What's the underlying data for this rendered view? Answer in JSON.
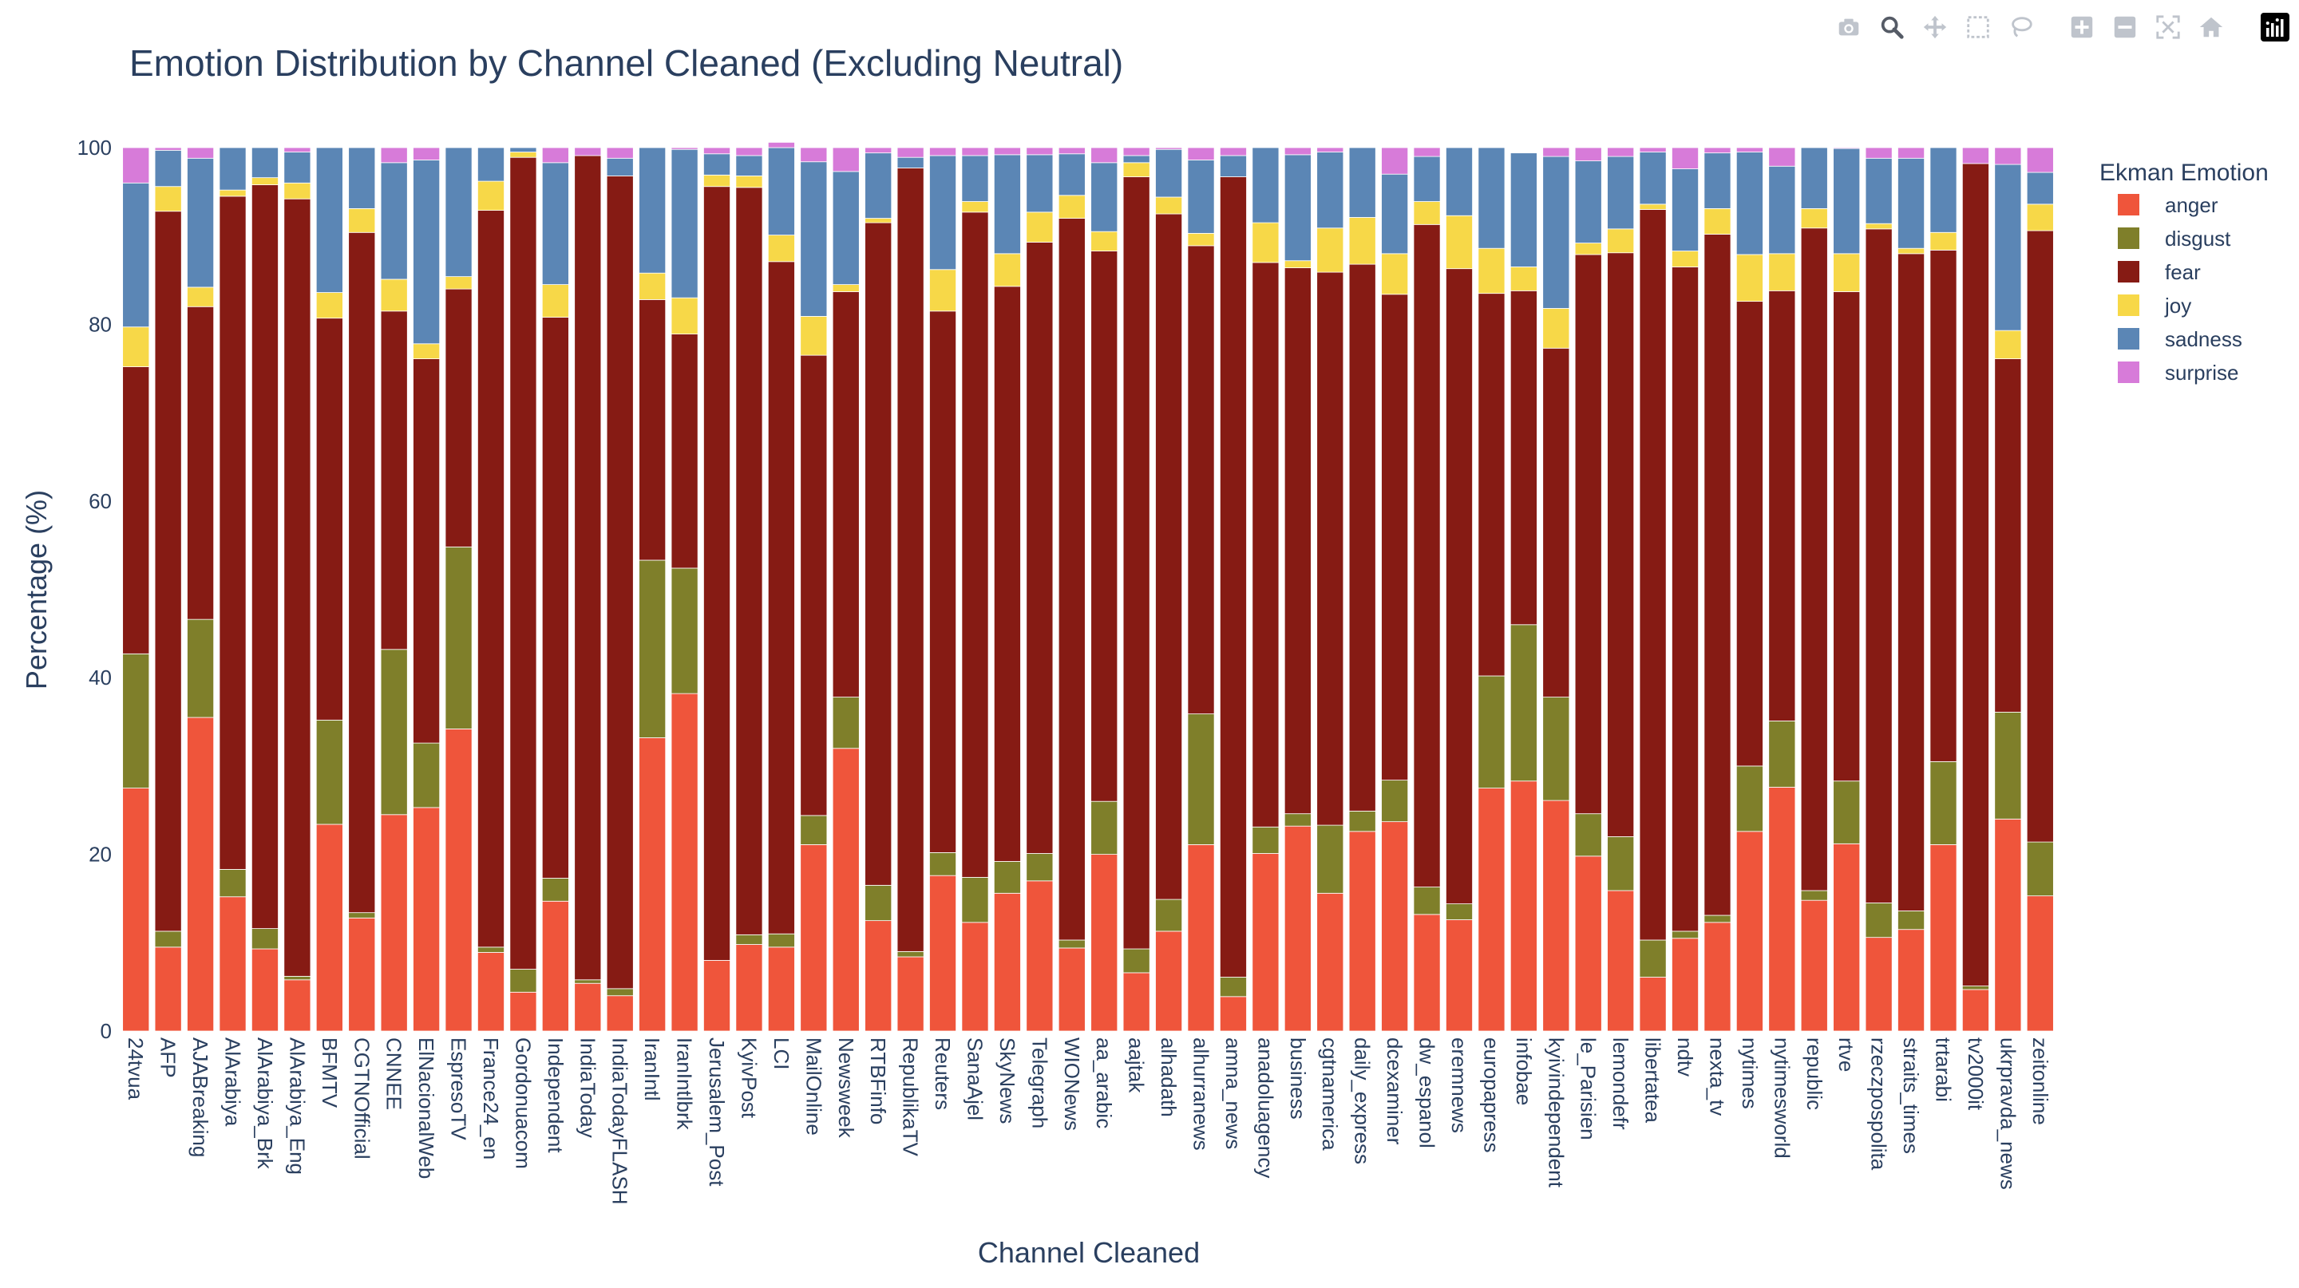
{
  "modebar": {
    "buttons": [
      {
        "name": "camera-icon",
        "title": "Download plot as a png"
      },
      {
        "name": "zoom-icon",
        "title": "Zoom"
      },
      {
        "name": "pan-icon",
        "title": "Pan"
      },
      {
        "name": "box-select-icon",
        "title": "Box Select"
      },
      {
        "name": "lasso-select-icon",
        "title": "Lasso Select"
      },
      {
        "name": "zoom-in-icon",
        "title": "Zoom in"
      },
      {
        "name": "zoom-out-icon",
        "title": "Zoom out"
      },
      {
        "name": "autoscale-icon",
        "title": "Autoscale"
      },
      {
        "name": "reset-axes-icon",
        "title": "Reset axes"
      },
      {
        "name": "plotly-logo-icon",
        "title": "Produced with Plotly"
      }
    ]
  },
  "chart_data": {
    "type": "bar",
    "barmode": "stack",
    "title": "Emotion Distribution by Channel Cleaned (Excluding Neutral)",
    "xlabel": "Channel Cleaned",
    "ylabel": "Percentage (%)",
    "ylim": [
      0,
      100
    ],
    "yticks": [
      0,
      20,
      40,
      60,
      80,
      100
    ],
    "grid": false,
    "legend": {
      "title": "Ekman Emotion",
      "placement": "top-right outside"
    },
    "categories": [
      "24tvua",
      "AFP",
      "AJABreaking",
      "AlArabiya",
      "AlArabiya_Brk",
      "AlArabiya_Eng",
      "BFMTV",
      "CGTNOfficial",
      "CNNEE",
      "ElNacionalWeb",
      "EspresoTV",
      "France24_en",
      "Gordonuacom",
      "Independent",
      "IndiaToday",
      "IndiaTodayFLASH",
      "IranIntl",
      "IranIntlbrk",
      "Jerusalem_Post",
      "KyivPost",
      "LCI",
      "MailOnline",
      "Newsweek",
      "RTBFinfo",
      "RepublikaTV",
      "Reuters",
      "SanaAjel",
      "SkyNews",
      "Telegraph",
      "WIONews",
      "aa_arabic",
      "aajtak",
      "alhadath",
      "alhurranews",
      "amna_news",
      "anadoluagency",
      "business",
      "cgtnamerica",
      "daily_express",
      "dcexaminer",
      "dw_espanol",
      "eremnews",
      "europapress",
      "infobae",
      "kyivindependent",
      "le_Parisien",
      "lemondefr",
      "libertatea",
      "ndtv",
      "nexta_tv",
      "nytimes",
      "nytimesworld",
      "republic",
      "rtve",
      "rzeczpospolita",
      "straits_times",
      "trtarabi",
      "tv2000it",
      "ukrpravda_news",
      "zeitonline"
    ],
    "series": [
      {
        "name": "anger",
        "color": "#EF553B",
        "values": [
          27.5,
          9.5,
          35.5,
          15.2,
          9.3,
          5.8,
          23.4,
          12.8,
          24.5,
          25.3,
          34.2,
          8.9,
          4.4,
          14.7,
          5.4,
          4.0,
          33.2,
          38.2,
          8.0,
          9.8,
          9.5,
          21.1,
          32.0,
          12.5,
          8.4,
          17.6,
          12.3,
          15.6,
          17.0,
          9.4,
          20.0,
          6.6,
          11.3,
          21.1,
          3.9,
          20.1,
          23.2,
          15.6,
          22.6,
          23.7,
          13.2,
          12.6,
          27.5,
          28.3,
          26.1,
          19.8,
          15.9,
          6.1,
          10.5,
          12.3,
          22.6,
          27.6,
          14.8,
          21.2,
          10.6,
          11.5,
          21.1,
          4.7,
          24.0,
          15.3
        ]
      },
      {
        "name": "disgust",
        "color": "#7F7F2A",
        "values": [
          15.2,
          1.8,
          11.1,
          3.1,
          2.3,
          0.4,
          11.8,
          0.6,
          18.7,
          7.3,
          20.6,
          0.6,
          2.6,
          2.6,
          0.4,
          0.8,
          20.1,
          14.2,
          0.0,
          1.1,
          1.5,
          3.3,
          5.8,
          4.0,
          0.6,
          2.6,
          5.1,
          3.6,
          3.1,
          0.9,
          6.0,
          2.7,
          3.6,
          14.8,
          2.2,
          3.0,
          1.4,
          7.7,
          2.3,
          4.7,
          3.1,
          1.8,
          12.7,
          17.7,
          11.7,
          4.8,
          6.1,
          4.2,
          0.8,
          0.8,
          7.4,
          7.5,
          1.1,
          7.1,
          3.9,
          2.1,
          9.4,
          0.4,
          12.1,
          6.1
        ]
      },
      {
        "name": "fear",
        "color": "#861B14",
        "values": [
          32.5,
          81.5,
          35.4,
          76.2,
          84.2,
          88.0,
          45.5,
          77.0,
          38.3,
          43.5,
          29.2,
          83.4,
          91.9,
          63.5,
          93.3,
          92.0,
          29.5,
          26.5,
          87.6,
          84.6,
          76.1,
          52.1,
          45.9,
          75.0,
          88.7,
          61.3,
          75.3,
          65.1,
          69.2,
          81.7,
          62.3,
          87.4,
          77.6,
          53.0,
          90.6,
          63.9,
          61.8,
          62.6,
          61.9,
          55.0,
          75.0,
          71.9,
          43.3,
          37.8,
          39.5,
          63.3,
          66.1,
          82.7,
          75.2,
          77.1,
          52.6,
          48.7,
          75.0,
          55.4,
          76.3,
          74.4,
          57.9,
          93.1,
          40.0,
          69.2
        ]
      },
      {
        "name": "joy",
        "color": "#F7D848",
        "values": [
          4.5,
          2.8,
          2.2,
          0.7,
          0.8,
          1.8,
          2.9,
          2.7,
          3.6,
          1.7,
          1.4,
          3.3,
          0.6,
          3.7,
          0.0,
          0.0,
          3.0,
          4.1,
          1.3,
          1.3,
          3.0,
          4.4,
          0.8,
          0.5,
          0.0,
          4.7,
          1.2,
          3.7,
          3.4,
          2.6,
          2.2,
          1.6,
          1.9,
          1.4,
          0.0,
          4.5,
          0.8,
          5.0,
          5.3,
          4.6,
          2.6,
          6.0,
          5.1,
          2.7,
          4.5,
          1.3,
          2.7,
          0.6,
          1.8,
          2.9,
          5.3,
          4.2,
          2.2,
          4.3,
          0.6,
          0.6,
          2.0,
          0.0,
          3.2,
          3.0
        ]
      },
      {
        "name": "sadness",
        "color": "#5B86B5",
        "values": [
          16.3,
          4.1,
          14.6,
          4.8,
          3.4,
          3.5,
          16.4,
          6.9,
          13.2,
          20.8,
          14.6,
          3.8,
          0.5,
          13.8,
          0.0,
          2.0,
          14.2,
          16.8,
          2.4,
          2.3,
          9.9,
          17.5,
          12.8,
          7.4,
          1.2,
          12.9,
          5.2,
          11.2,
          6.5,
          4.7,
          7.8,
          0.8,
          5.4,
          8.3,
          2.4,
          8.5,
          12.0,
          8.6,
          7.9,
          9.0,
          5.1,
          7.7,
          11.4,
          12.9,
          17.2,
          9.3,
          8.2,
          5.9,
          9.3,
          6.3,
          11.6,
          9.9,
          6.9,
          11.9,
          7.4,
          10.2,
          9.6,
          0.0,
          18.8,
          3.6
        ]
      },
      {
        "name": "surprise",
        "color": "#D77BD9",
        "values": [
          4.0,
          0.3,
          1.2,
          0.0,
          0.0,
          0.5,
          0.0,
          0.0,
          1.7,
          1.4,
          0.0,
          0.0,
          0.0,
          1.7,
          0.9,
          1.2,
          0.0,
          0.2,
          0.7,
          0.9,
          0.6,
          1.6,
          2.7,
          0.6,
          1.1,
          0.9,
          0.9,
          0.8,
          0.8,
          0.7,
          1.7,
          0.9,
          0.2,
          1.4,
          0.9,
          0.0,
          0.8,
          0.5,
          0.0,
          3.0,
          1.0,
          0.0,
          0.0,
          0.0,
          1.0,
          1.5,
          1.0,
          0.5,
          2.4,
          0.6,
          0.5,
          2.1,
          0.0,
          0.1,
          1.2,
          1.2,
          0.0,
          1.8,
          1.9,
          2.8
        ]
      }
    ]
  }
}
